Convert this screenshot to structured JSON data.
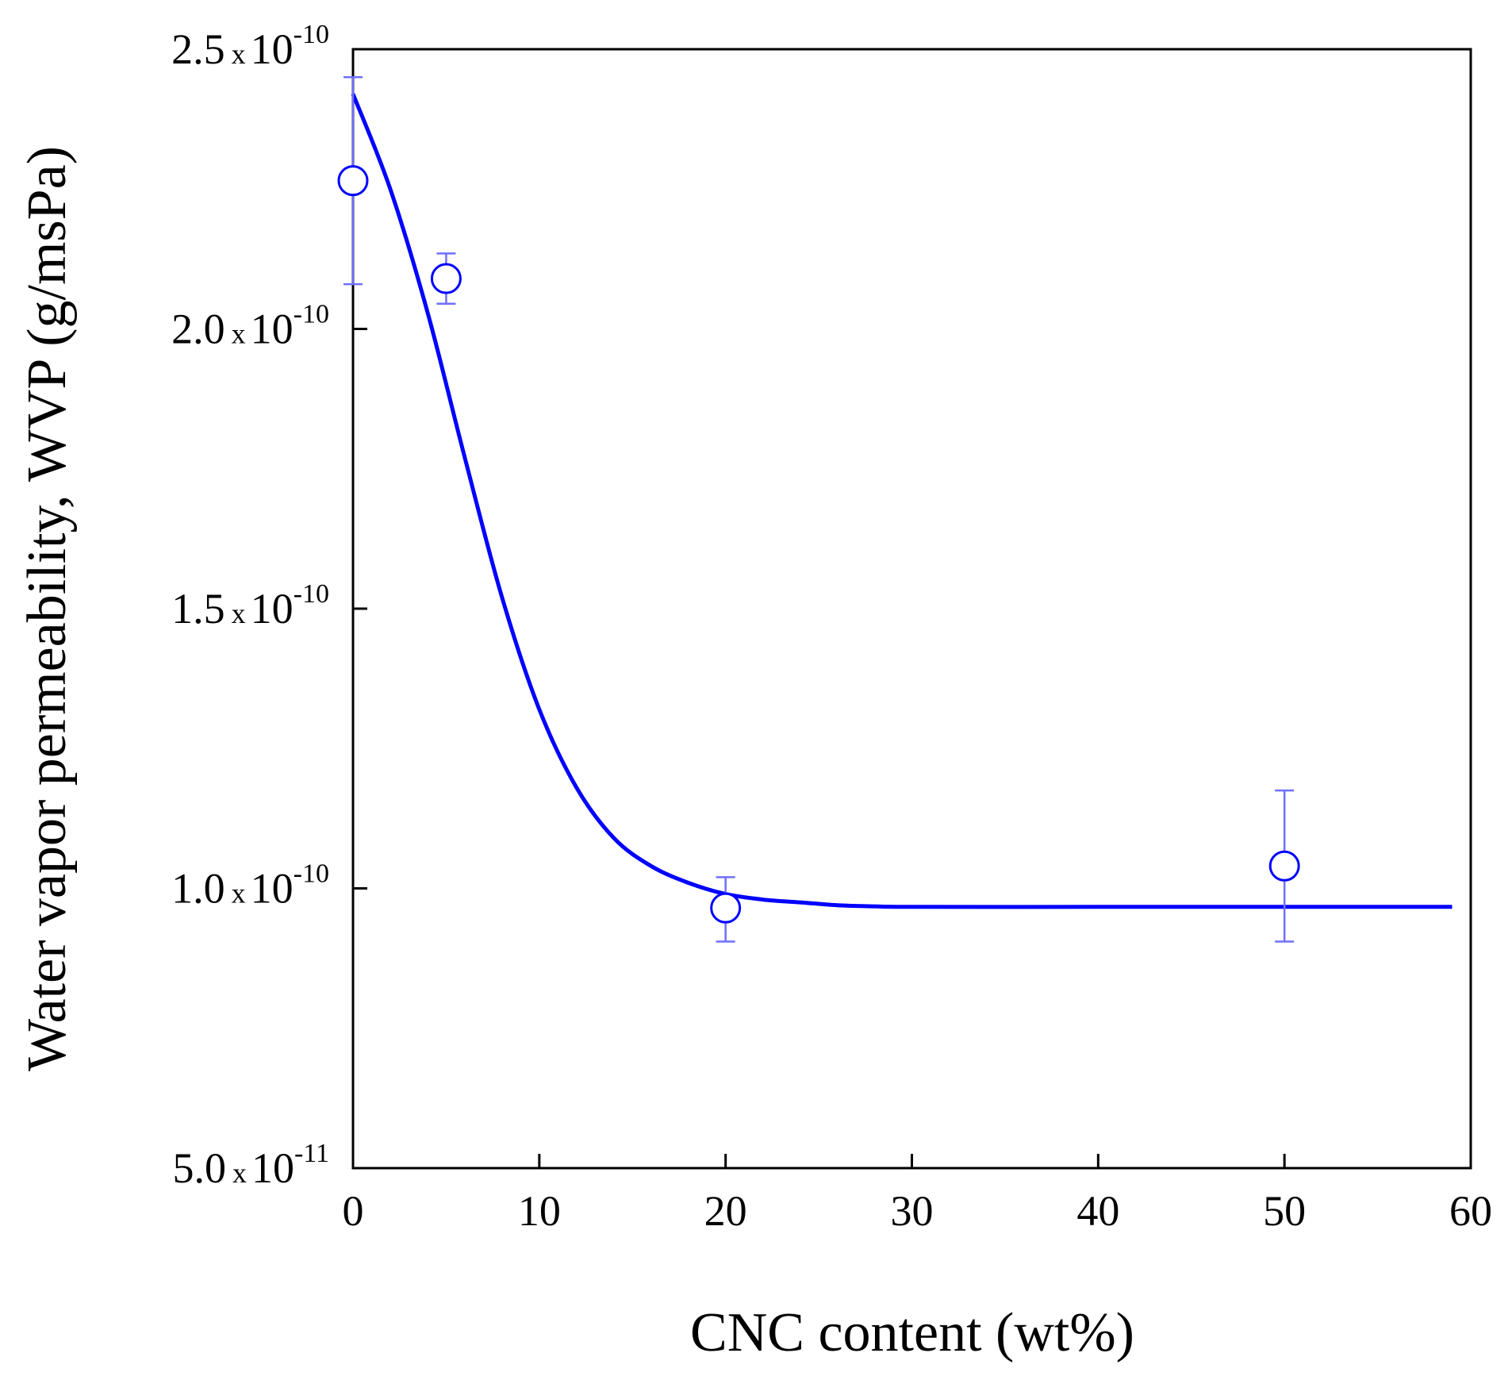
{
  "chart_data": {
    "type": "scatter",
    "xlabel": "CNC content (wt%)",
    "ylabel": "Water vapor permeability, WVP (g/msPa)",
    "xlim": [
      0,
      60
    ],
    "ylim": [
      5e-11,
      2.5e-10
    ],
    "grid": false,
    "x_ticks": [
      "0",
      "10",
      "20",
      "30",
      "40",
      "50",
      "60"
    ],
    "y_ticks": [
      {
        "mantissa": "5.0",
        "exponent": "-11",
        "value": 5e-11
      },
      {
        "mantissa": "1.0",
        "exponent": "-10",
        "value": 1e-10
      },
      {
        "mantissa": "1.5",
        "exponent": "-10",
        "value": 1.5e-10
      },
      {
        "mantissa": "2.0",
        "exponent": "-10",
        "value": 2e-10
      },
      {
        "mantissa": "2.5",
        "exponent": "-10",
        "value": 2.5e-10
      }
    ],
    "times_symbol": "x",
    "power_base": "10",
    "series": [
      {
        "type": "scatter",
        "marker": "open-circle",
        "color": "#0000ff",
        "points": [
          {
            "x": 0,
            "y": 2.265e-10,
            "err_low": 2.08e-10,
            "err_high": 2.45e-10
          },
          {
            "x": 5,
            "y": 2.09e-10,
            "err_low": 2.045e-10,
            "err_high": 2.135e-10
          },
          {
            "x": 20,
            "y": 9.65e-11,
            "err_low": 9.05e-11,
            "err_high": 1.02e-10
          },
          {
            "x": 50,
            "y": 1.04e-10,
            "err_low": 9.05e-11,
            "err_high": 1.175e-10
          }
        ]
      },
      {
        "type": "line",
        "color": "#0000ff",
        "x": [
          0,
          2,
          4,
          6,
          8,
          10,
          12,
          14,
          16,
          18,
          20,
          22,
          24,
          26,
          28,
          30,
          40,
          50,
          59
        ],
        "y": [
          2.42e-10,
          2.25e-10,
          2.03e-10,
          1.77e-10,
          1.52e-10,
          1.32e-10,
          1.18e-10,
          1.09e-10,
          1.04e-10,
          1.01e-10,
          9.9e-11,
          9.8e-11,
          9.75e-11,
          9.7e-11,
          9.68e-11,
          9.67e-11,
          9.67e-11,
          9.67e-11,
          9.67e-11
        ]
      }
    ]
  }
}
